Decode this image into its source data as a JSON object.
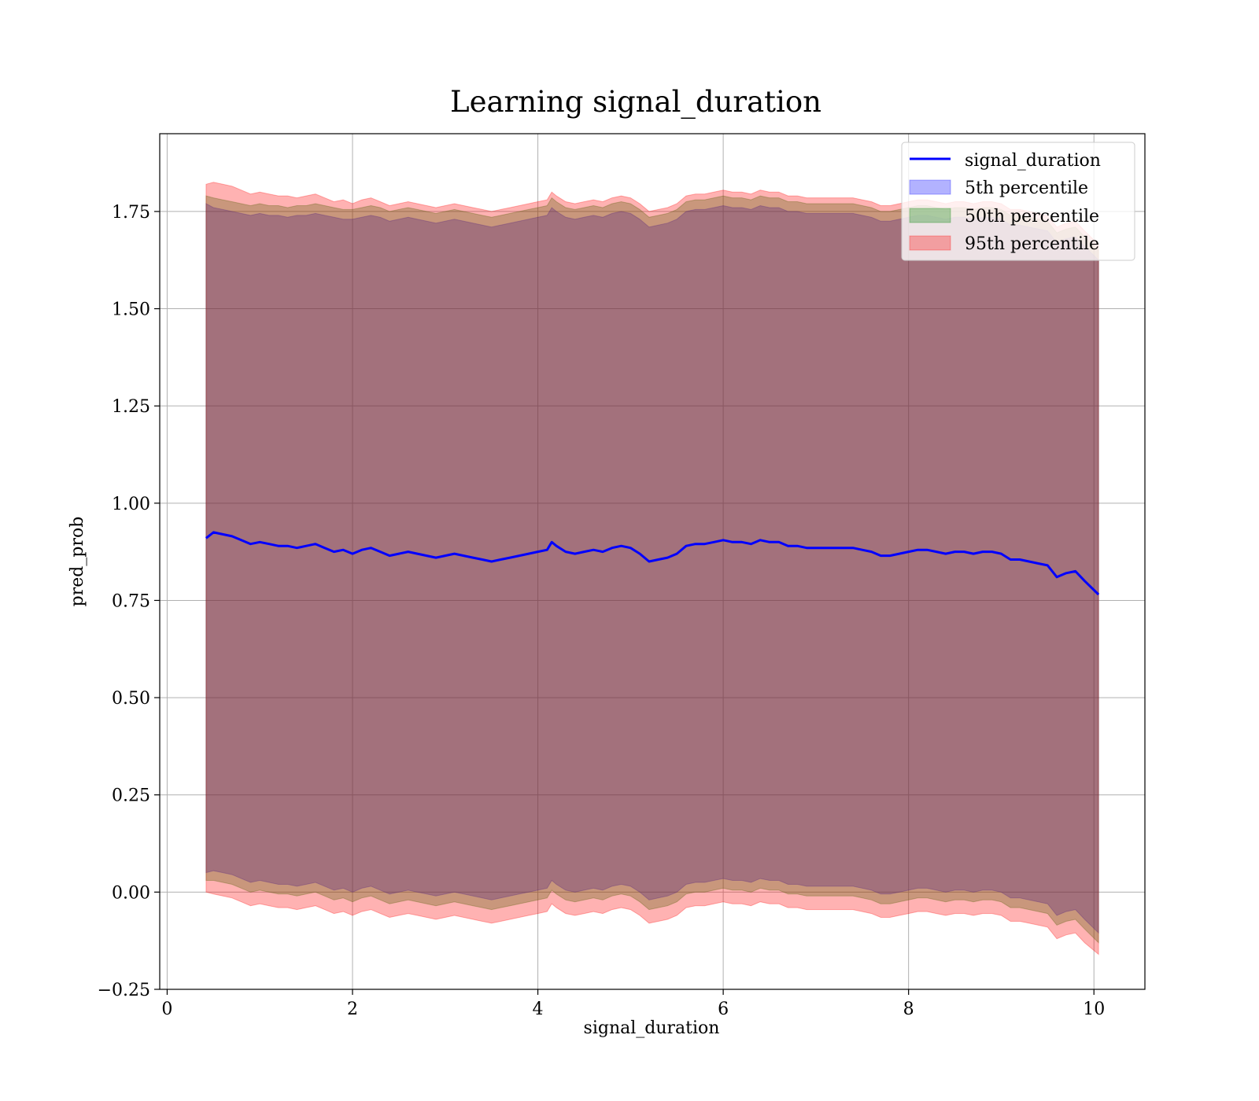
{
  "chart_data": {
    "type": "line",
    "title": "Learning signal_duration",
    "xlabel": "signal_duration",
    "ylabel": "pred_prob",
    "xlim": [
      -0.08,
      10.55
    ],
    "ylim": [
      -0.25,
      1.95
    ],
    "xticks": [
      0,
      2,
      4,
      6,
      8,
      10
    ],
    "xtick_labels": [
      "0",
      "2",
      "4",
      "6",
      "8",
      "10"
    ],
    "yticks": [
      -0.25,
      0.0,
      0.25,
      0.5,
      0.75,
      1.0,
      1.25,
      1.5,
      1.75
    ],
    "ytick_labels": [
      "−0.25",
      "0.00",
      "0.25",
      "0.50",
      "0.75",
      "1.00",
      "1.25",
      "1.50",
      "1.75"
    ],
    "grid": true,
    "legend_position": "top-right",
    "line": {
      "name": "signal_duration",
      "color": "#0000ff",
      "x": [
        0.42,
        0.5,
        0.6,
        0.7,
        0.8,
        0.9,
        1.0,
        1.1,
        1.2,
        1.3,
        1.4,
        1.5,
        1.6,
        1.7,
        1.8,
        1.9,
        2.0,
        2.1,
        2.2,
        2.3,
        2.4,
        2.5,
        2.6,
        2.7,
        2.8,
        2.9,
        3.0,
        3.1,
        3.2,
        3.3,
        3.4,
        3.5,
        3.6,
        3.7,
        3.8,
        3.9,
        4.0,
        4.1,
        4.15,
        4.2,
        4.3,
        4.4,
        4.5,
        4.6,
        4.7,
        4.8,
        4.9,
        5.0,
        5.1,
        5.2,
        5.3,
        5.4,
        5.5,
        5.6,
        5.7,
        5.8,
        5.9,
        6.0,
        6.1,
        6.2,
        6.3,
        6.4,
        6.5,
        6.6,
        6.7,
        6.8,
        6.9,
        7.0,
        7.1,
        7.2,
        7.3,
        7.4,
        7.5,
        7.6,
        7.7,
        7.8,
        7.9,
        8.0,
        8.1,
        8.2,
        8.3,
        8.4,
        8.5,
        8.6,
        8.7,
        8.8,
        8.9,
        9.0,
        9.1,
        9.2,
        9.3,
        9.4,
        9.5,
        9.6,
        9.7,
        9.8,
        9.9,
        10.05
      ],
      "y": [
        0.91,
        0.925,
        0.92,
        0.915,
        0.905,
        0.895,
        0.9,
        0.895,
        0.89,
        0.89,
        0.885,
        0.89,
        0.895,
        0.885,
        0.875,
        0.88,
        0.87,
        0.88,
        0.885,
        0.875,
        0.865,
        0.87,
        0.875,
        0.87,
        0.865,
        0.86,
        0.865,
        0.87,
        0.865,
        0.86,
        0.855,
        0.85,
        0.855,
        0.86,
        0.865,
        0.87,
        0.875,
        0.88,
        0.9,
        0.89,
        0.875,
        0.87,
        0.875,
        0.88,
        0.875,
        0.885,
        0.89,
        0.885,
        0.87,
        0.85,
        0.855,
        0.86,
        0.87,
        0.89,
        0.895,
        0.895,
        0.9,
        0.905,
        0.9,
        0.9,
        0.895,
        0.905,
        0.9,
        0.9,
        0.89,
        0.89,
        0.885,
        0.885,
        0.885,
        0.885,
        0.885,
        0.885,
        0.88,
        0.875,
        0.865,
        0.865,
        0.87,
        0.875,
        0.88,
        0.88,
        0.875,
        0.87,
        0.875,
        0.875,
        0.87,
        0.875,
        0.875,
        0.87,
        0.855,
        0.855,
        0.85,
        0.845,
        0.84,
        0.81,
        0.82,
        0.825,
        0.8,
        0.765
      ]
    },
    "bands": [
      {
        "name": "5th percentile",
        "color": "#0000ff",
        "upper": [
          1.77,
          1.76,
          1.755,
          1.75,
          1.745,
          1.74,
          1.745,
          1.74,
          1.74,
          1.735,
          1.74,
          1.74,
          1.745,
          1.74,
          1.735,
          1.73,
          1.73,
          1.735,
          1.74,
          1.735,
          1.725,
          1.73,
          1.735,
          1.73,
          1.725,
          1.72,
          1.725,
          1.73,
          1.725,
          1.72,
          1.715,
          1.71,
          1.715,
          1.72,
          1.725,
          1.73,
          1.735,
          1.74,
          1.76,
          1.75,
          1.735,
          1.73,
          1.735,
          1.74,
          1.735,
          1.745,
          1.75,
          1.745,
          1.73,
          1.71,
          1.715,
          1.72,
          1.73,
          1.75,
          1.755,
          1.755,
          1.76,
          1.765,
          1.76,
          1.76,
          1.755,
          1.765,
          1.76,
          1.76,
          1.75,
          1.75,
          1.745,
          1.745,
          1.745,
          1.745,
          1.745,
          1.745,
          1.74,
          1.735,
          1.725,
          1.725,
          1.73,
          1.735,
          1.74,
          1.74,
          1.735,
          1.73,
          1.735,
          1.735,
          1.73,
          1.735,
          1.735,
          1.73,
          1.715,
          1.715,
          1.71,
          1.705,
          1.7,
          1.67,
          1.68,
          1.685,
          1.66,
          1.625
        ],
        "lower": [
          0.05,
          0.055,
          0.05,
          0.045,
          0.035,
          0.025,
          0.03,
          0.025,
          0.02,
          0.02,
          0.015,
          0.02,
          0.025,
          0.015,
          0.005,
          0.01,
          0.0,
          0.01,
          0.015,
          0.005,
          -0.005,
          0.0,
          0.005,
          0.0,
          -0.005,
          -0.01,
          -0.005,
          0.0,
          -0.005,
          -0.01,
          -0.015,
          -0.02,
          -0.015,
          -0.01,
          -0.005,
          0.0,
          0.005,
          0.01,
          0.03,
          0.02,
          0.005,
          0.0,
          0.005,
          0.01,
          0.005,
          0.015,
          0.02,
          0.015,
          0.0,
          -0.02,
          -0.015,
          -0.01,
          0.0,
          0.02,
          0.025,
          0.025,
          0.03,
          0.035,
          0.03,
          0.03,
          0.025,
          0.035,
          0.03,
          0.03,
          0.02,
          0.02,
          0.015,
          0.015,
          0.015,
          0.015,
          0.015,
          0.015,
          0.01,
          0.005,
          -0.005,
          -0.005,
          0.0,
          0.005,
          0.01,
          0.01,
          0.005,
          0.0,
          0.005,
          0.005,
          0.0,
          0.005,
          0.005,
          0.0,
          -0.015,
          -0.015,
          -0.02,
          -0.025,
          -0.03,
          -0.06,
          -0.05,
          -0.045,
          -0.07,
          -0.105
        ]
      },
      {
        "name": "50th percentile",
        "color": "#008000",
        "upper": [
          1.79,
          1.785,
          1.78,
          1.775,
          1.77,
          1.765,
          1.77,
          1.765,
          1.765,
          1.76,
          1.765,
          1.765,
          1.77,
          1.765,
          1.76,
          1.755,
          1.755,
          1.76,
          1.765,
          1.76,
          1.75,
          1.755,
          1.76,
          1.755,
          1.75,
          1.745,
          1.75,
          1.755,
          1.75,
          1.745,
          1.74,
          1.735,
          1.74,
          1.745,
          1.75,
          1.755,
          1.76,
          1.765,
          1.785,
          1.775,
          1.76,
          1.755,
          1.76,
          1.765,
          1.76,
          1.77,
          1.775,
          1.77,
          1.755,
          1.735,
          1.74,
          1.745,
          1.755,
          1.775,
          1.78,
          1.78,
          1.785,
          1.79,
          1.785,
          1.785,
          1.78,
          1.79,
          1.785,
          1.785,
          1.775,
          1.775,
          1.77,
          1.77,
          1.77,
          1.77,
          1.77,
          1.77,
          1.765,
          1.76,
          1.75,
          1.75,
          1.755,
          1.76,
          1.765,
          1.765,
          1.76,
          1.755,
          1.76,
          1.76,
          1.755,
          1.76,
          1.76,
          1.755,
          1.74,
          1.74,
          1.735,
          1.73,
          1.725,
          1.695,
          1.705,
          1.71,
          1.685,
          1.65
        ],
        "lower": [
          0.03,
          0.03,
          0.025,
          0.02,
          0.01,
          0.0,
          0.005,
          0.0,
          -0.005,
          -0.005,
          -0.01,
          -0.005,
          0.0,
          -0.01,
          -0.02,
          -0.015,
          -0.025,
          -0.015,
          -0.01,
          -0.02,
          -0.03,
          -0.025,
          -0.02,
          -0.025,
          -0.03,
          -0.035,
          -0.03,
          -0.025,
          -0.03,
          -0.035,
          -0.04,
          -0.045,
          -0.04,
          -0.035,
          -0.03,
          -0.025,
          -0.02,
          -0.015,
          0.005,
          -0.005,
          -0.02,
          -0.025,
          -0.02,
          -0.015,
          -0.02,
          -0.01,
          -0.005,
          -0.01,
          -0.025,
          -0.045,
          -0.04,
          -0.035,
          -0.025,
          -0.005,
          0.0,
          0.0,
          0.005,
          0.01,
          0.005,
          0.005,
          0.0,
          0.01,
          0.005,
          0.005,
          -0.005,
          -0.005,
          -0.01,
          -0.01,
          -0.01,
          -0.01,
          -0.01,
          -0.01,
          -0.015,
          -0.02,
          -0.03,
          -0.03,
          -0.025,
          -0.02,
          -0.015,
          -0.015,
          -0.02,
          -0.025,
          -0.02,
          -0.02,
          -0.025,
          -0.02,
          -0.02,
          -0.025,
          -0.04,
          -0.04,
          -0.045,
          -0.05,
          -0.055,
          -0.085,
          -0.075,
          -0.07,
          -0.095,
          -0.13
        ]
      },
      {
        "name": "95th percentile",
        "color": "#ff0000",
        "upper": [
          1.82,
          1.825,
          1.82,
          1.815,
          1.805,
          1.795,
          1.8,
          1.795,
          1.79,
          1.79,
          1.785,
          1.79,
          1.795,
          1.785,
          1.775,
          1.78,
          1.77,
          1.78,
          1.785,
          1.775,
          1.765,
          1.77,
          1.775,
          1.77,
          1.765,
          1.76,
          1.765,
          1.77,
          1.765,
          1.76,
          1.755,
          1.75,
          1.755,
          1.76,
          1.765,
          1.77,
          1.775,
          1.78,
          1.8,
          1.79,
          1.775,
          1.77,
          1.775,
          1.78,
          1.775,
          1.785,
          1.79,
          1.785,
          1.77,
          1.75,
          1.755,
          1.76,
          1.77,
          1.79,
          1.795,
          1.795,
          1.8,
          1.805,
          1.8,
          1.8,
          1.795,
          1.805,
          1.8,
          1.8,
          1.79,
          1.79,
          1.785,
          1.785,
          1.785,
          1.785,
          1.785,
          1.785,
          1.78,
          1.775,
          1.765,
          1.765,
          1.77,
          1.775,
          1.78,
          1.78,
          1.775,
          1.77,
          1.775,
          1.775,
          1.77,
          1.775,
          1.775,
          1.77,
          1.755,
          1.755,
          1.75,
          1.745,
          1.74,
          1.71,
          1.72,
          1.725,
          1.7,
          1.665
        ],
        "lower": [
          0.0,
          -0.005,
          -0.01,
          -0.015,
          -0.025,
          -0.035,
          -0.03,
          -0.035,
          -0.04,
          -0.04,
          -0.045,
          -0.04,
          -0.035,
          -0.045,
          -0.055,
          -0.05,
          -0.06,
          -0.05,
          -0.045,
          -0.055,
          -0.065,
          -0.06,
          -0.055,
          -0.06,
          -0.065,
          -0.07,
          -0.065,
          -0.06,
          -0.065,
          -0.07,
          -0.075,
          -0.08,
          -0.075,
          -0.07,
          -0.065,
          -0.06,
          -0.055,
          -0.05,
          -0.03,
          -0.04,
          -0.055,
          -0.06,
          -0.055,
          -0.05,
          -0.055,
          -0.045,
          -0.04,
          -0.045,
          -0.06,
          -0.08,
          -0.075,
          -0.07,
          -0.06,
          -0.04,
          -0.035,
          -0.035,
          -0.03,
          -0.025,
          -0.03,
          -0.03,
          -0.035,
          -0.025,
          -0.03,
          -0.03,
          -0.04,
          -0.04,
          -0.045,
          -0.045,
          -0.045,
          -0.045,
          -0.045,
          -0.045,
          -0.05,
          -0.055,
          -0.065,
          -0.065,
          -0.06,
          -0.055,
          -0.05,
          -0.05,
          -0.055,
          -0.06,
          -0.055,
          -0.055,
          -0.06,
          -0.055,
          -0.055,
          -0.06,
          -0.075,
          -0.075,
          -0.08,
          -0.085,
          -0.09,
          -0.12,
          -0.11,
          -0.105,
          -0.13,
          -0.16
        ]
      }
    ]
  }
}
